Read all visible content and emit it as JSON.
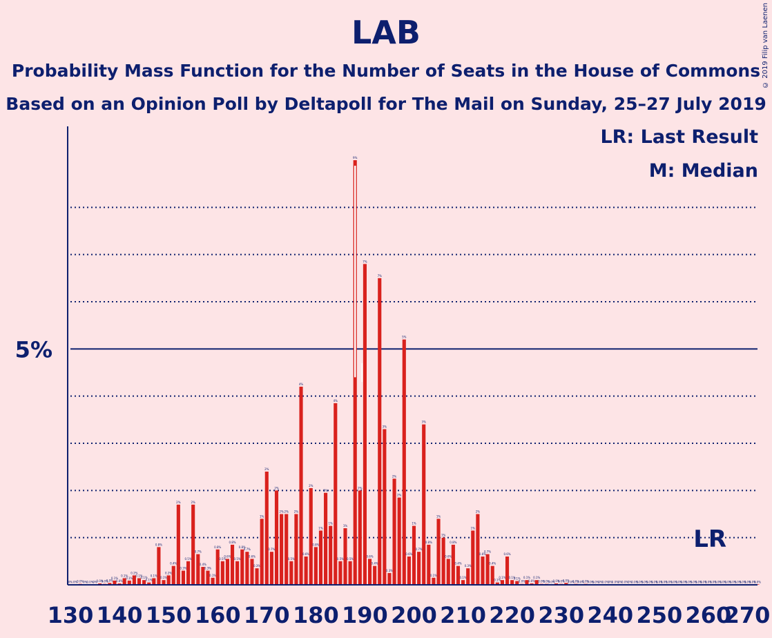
{
  "title": "LAB",
  "subtitle1": "Probability Mass Function for the Number of Seats in the House of Commons",
  "subtitle2": "Based on an Opinion Poll by Deltapoll for The Mail on Sunday, 25–27 July 2019",
  "legend": {
    "lr": "LR: Last Result",
    "m": "M: Median"
  },
  "copyright": "© 2019 Filip van Laenen",
  "colors": {
    "bar": "#d9211d",
    "axis": "#0d1f6e",
    "background": "#fde4e6"
  },
  "chart_data": {
    "type": "bar",
    "x_range": [
      130,
      270
    ],
    "y_max_percent": 9,
    "y_tick_label": "5%",
    "y_tick_value": 5,
    "x_ticks": [
      130,
      140,
      150,
      160,
      170,
      180,
      190,
      200,
      210,
      220,
      230,
      240,
      250,
      260,
      270
    ],
    "markers": {
      "last_result": 262,
      "last_result_label": "LR",
      "median": 188
    },
    "seats": [
      130,
      131,
      132,
      133,
      134,
      135,
      136,
      137,
      138,
      139,
      140,
      141,
      142,
      143,
      144,
      145,
      146,
      147,
      148,
      149,
      150,
      151,
      152,
      153,
      154,
      155,
      156,
      157,
      158,
      159,
      160,
      161,
      162,
      163,
      164,
      165,
      166,
      167,
      168,
      169,
      170,
      171,
      172,
      173,
      174,
      175,
      176,
      177,
      178,
      179,
      180,
      181,
      182,
      183,
      184,
      185,
      186,
      187,
      188,
      189,
      190,
      191,
      192,
      193,
      194,
      195,
      196,
      197,
      198,
      199,
      200,
      201,
      202,
      203,
      204,
      205,
      206,
      207,
      208,
      209,
      210,
      211,
      212,
      213,
      214,
      215,
      216,
      217,
      218,
      219,
      220,
      221,
      222,
      223,
      224,
      225,
      226,
      227,
      228,
      229,
      230,
      231,
      232,
      233,
      234,
      235,
      236,
      237,
      238,
      239,
      240,
      241,
      242,
      243,
      244,
      245,
      246,
      247,
      248,
      249,
      250,
      251,
      252,
      253,
      254,
      255,
      256,
      257,
      258,
      259,
      260,
      261,
      262,
      263,
      264,
      265,
      266,
      267,
      268,
      269,
      270
    ],
    "probabilities_percent": [
      0,
      0,
      0.02,
      0,
      0.01,
      0,
      0.03,
      0.02,
      0.04,
      0.09,
      0.03,
      0.14,
      0.09,
      0.2,
      0.14,
      0.1,
      0.05,
      0.14,
      0.8,
      0.1,
      0.2,
      0.4,
      1.7,
      0.3,
      0.5,
      1.7,
      0.65,
      0.38,
      0.3,
      0.15,
      0.75,
      0.5,
      0.55,
      0.85,
      0.5,
      0.75,
      0.7,
      0.55,
      0.35,
      1.4,
      2.4,
      0.7,
      2.0,
      1.5,
      1.5,
      0.5,
      1.5,
      4.2,
      0.6,
      2.05,
      0.8,
      1.15,
      1.95,
      1.25,
      3.85,
      0.5,
      1.2,
      0.5,
      9.0,
      2.0,
      6.8,
      0.55,
      0.4,
      6.5,
      3.3,
      0.25,
      2.25,
      1.85,
      5.2,
      0.6,
      1.25,
      0.7,
      3.4,
      0.85,
      0.15,
      1.4,
      1.0,
      0.55,
      0.85,
      0.4,
      0.1,
      0.35,
      1.15,
      1.5,
      0.6,
      0.65,
      0.4,
      0.05,
      0.1,
      0.6,
      0.1,
      0.08,
      0.02,
      0.1,
      0.03,
      0.1,
      0.02,
      0.02,
      0.01,
      0.03,
      0.02,
      0.04,
      0.01,
      0.02,
      0.01,
      0.02,
      0.01,
      0.01,
      0,
      0.01,
      0,
      0.01,
      0,
      0.01,
      0,
      0.01,
      0.01,
      0.01,
      0.01,
      0.01,
      0.01,
      0.01,
      0.01,
      0.01,
      0.01,
      0.01,
      0.01,
      0.01,
      0.01,
      0.01,
      0.01,
      0.01,
      0.01,
      0.01,
      0.01,
      0.01,
      0.01,
      0.01,
      0.01,
      0.01,
      0.01
    ]
  }
}
